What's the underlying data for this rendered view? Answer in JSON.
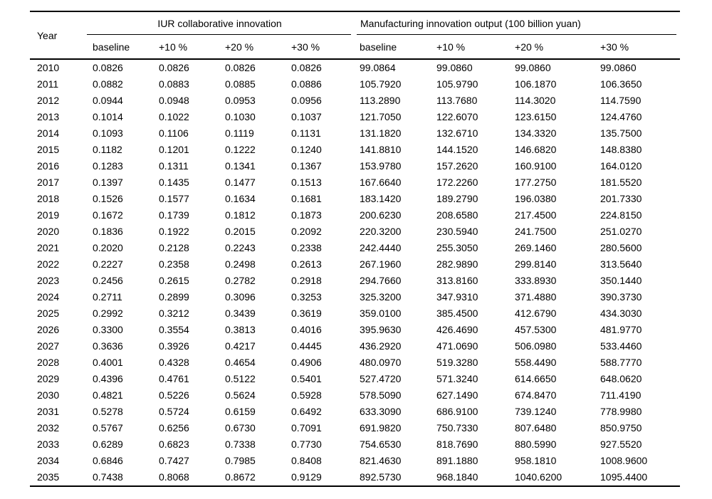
{
  "table": {
    "year_header": "Year",
    "groups": [
      {
        "label": "IUR collaborative innovation",
        "subheaders": [
          "baseline",
          "+10 %",
          "+20 %",
          "+30 %"
        ]
      },
      {
        "label": "Manufacturing innovation output (100 billion yuan)",
        "subheaders": [
          "baseline",
          "+10 %",
          "+20 %",
          "+30 %"
        ]
      }
    ],
    "rows": [
      {
        "year": "2010",
        "iur": [
          "0.0826",
          "0.0826",
          "0.0826",
          "0.0826"
        ],
        "mfg": [
          "99.0864",
          "99.0860",
          "99.0860",
          "99.0860"
        ]
      },
      {
        "year": "2011",
        "iur": [
          "0.0882",
          "0.0883",
          "0.0885",
          "0.0886"
        ],
        "mfg": [
          "105.7920",
          "105.9790",
          "106.1870",
          "106.3650"
        ]
      },
      {
        "year": "2012",
        "iur": [
          "0.0944",
          "0.0948",
          "0.0953",
          "0.0956"
        ],
        "mfg": [
          "113.2890",
          "113.7680",
          "114.3020",
          "114.7590"
        ]
      },
      {
        "year": "2013",
        "iur": [
          "0.1014",
          "0.1022",
          "0.1030",
          "0.1037"
        ],
        "mfg": [
          "121.7050",
          "122.6070",
          "123.6150",
          "124.4760"
        ]
      },
      {
        "year": "2014",
        "iur": [
          "0.1093",
          "0.1106",
          "0.1119",
          "0.1131"
        ],
        "mfg": [
          "131.1820",
          "132.6710",
          "134.3320",
          "135.7500"
        ]
      },
      {
        "year": "2015",
        "iur": [
          "0.1182",
          "0.1201",
          "0.1222",
          "0.1240"
        ],
        "mfg": [
          "141.8810",
          "144.1520",
          "146.6820",
          "148.8380"
        ]
      },
      {
        "year": "2016",
        "iur": [
          "0.1283",
          "0.1311",
          "0.1341",
          "0.1367"
        ],
        "mfg": [
          "153.9780",
          "157.2620",
          "160.9100",
          "164.0120"
        ]
      },
      {
        "year": "2017",
        "iur": [
          "0.1397",
          "0.1435",
          "0.1477",
          "0.1513"
        ],
        "mfg": [
          "167.6640",
          "172.2260",
          "177.2750",
          "181.5520"
        ]
      },
      {
        "year": "2018",
        "iur": [
          "0.1526",
          "0.1577",
          "0.1634",
          "0.1681"
        ],
        "mfg": [
          "183.1420",
          "189.2790",
          "196.0380",
          "201.7330"
        ]
      },
      {
        "year": "2019",
        "iur": [
          "0.1672",
          "0.1739",
          "0.1812",
          "0.1873"
        ],
        "mfg": [
          "200.6230",
          "208.6580",
          "217.4500",
          "224.8150"
        ]
      },
      {
        "year": "2020",
        "iur": [
          "0.1836",
          "0.1922",
          "0.2015",
          "0.2092"
        ],
        "mfg": [
          "220.3200",
          "230.5940",
          "241.7500",
          "251.0270"
        ]
      },
      {
        "year": "2021",
        "iur": [
          "0.2020",
          "0.2128",
          "0.2243",
          "0.2338"
        ],
        "mfg": [
          "242.4440",
          "255.3050",
          "269.1460",
          "280.5600"
        ]
      },
      {
        "year": "2022",
        "iur": [
          "0.2227",
          "0.2358",
          "0.2498",
          "0.2613"
        ],
        "mfg": [
          "267.1960",
          "282.9890",
          "299.8140",
          "313.5640"
        ]
      },
      {
        "year": "2023",
        "iur": [
          "0.2456",
          "0.2615",
          "0.2782",
          "0.2918"
        ],
        "mfg": [
          "294.7660",
          "313.8160",
          "333.8930",
          "350.1440"
        ]
      },
      {
        "year": "2024",
        "iur": [
          "0.2711",
          "0.2899",
          "0.3096",
          "0.3253"
        ],
        "mfg": [
          "325.3200",
          "347.9310",
          "371.4880",
          "390.3730"
        ]
      },
      {
        "year": "2025",
        "iur": [
          "0.2992",
          "0.3212",
          "0.3439",
          "0.3619"
        ],
        "mfg": [
          "359.0100",
          "385.4500",
          "412.6790",
          "434.3030"
        ]
      },
      {
        "year": "2026",
        "iur": [
          "0.3300",
          "0.3554",
          "0.3813",
          "0.4016"
        ],
        "mfg": [
          "395.9630",
          "426.4690",
          "457.5300",
          "481.9770"
        ]
      },
      {
        "year": "2027",
        "iur": [
          "0.3636",
          "0.3926",
          "0.4217",
          "0.4445"
        ],
        "mfg": [
          "436.2920",
          "471.0690",
          "506.0980",
          "533.4460"
        ]
      },
      {
        "year": "2028",
        "iur": [
          "0.4001",
          "0.4328",
          "0.4654",
          "0.4906"
        ],
        "mfg": [
          "480.0970",
          "519.3280",
          "558.4490",
          "588.7770"
        ]
      },
      {
        "year": "2029",
        "iur": [
          "0.4396",
          "0.4761",
          "0.5122",
          "0.5401"
        ],
        "mfg": [
          "527.4720",
          "571.3240",
          "614.6650",
          "648.0620"
        ]
      },
      {
        "year": "2030",
        "iur": [
          "0.4821",
          "0.5226",
          "0.5624",
          "0.5928"
        ],
        "mfg": [
          "578.5090",
          "627.1490",
          "674.8470",
          "711.4190"
        ]
      },
      {
        "year": "2031",
        "iur": [
          "0.5278",
          "0.5724",
          "0.6159",
          "0.6492"
        ],
        "mfg": [
          "633.3090",
          "686.9100",
          "739.1240",
          "778.9980"
        ]
      },
      {
        "year": "2032",
        "iur": [
          "0.5767",
          "0.6256",
          "0.6730",
          "0.7091"
        ],
        "mfg": [
          "691.9820",
          "750.7330",
          "807.6480",
          "850.9750"
        ]
      },
      {
        "year": "2033",
        "iur": [
          "0.6289",
          "0.6823",
          "0.7338",
          "0.7730"
        ],
        "mfg": [
          "754.6530",
          "818.7690",
          "880.5990",
          "927.5520"
        ]
      },
      {
        "year": "2034",
        "iur": [
          "0.6846",
          "0.7427",
          "0.7985",
          "0.8408"
        ],
        "mfg": [
          "821.4630",
          "891.1880",
          "958.1810",
          "1008.9600"
        ]
      },
      {
        "year": "2035",
        "iur": [
          "0.7438",
          "0.8068",
          "0.8672",
          "0.9129"
        ],
        "mfg": [
          "892.5730",
          "968.1840",
          "1040.6200",
          "1095.4400"
        ]
      }
    ]
  }
}
